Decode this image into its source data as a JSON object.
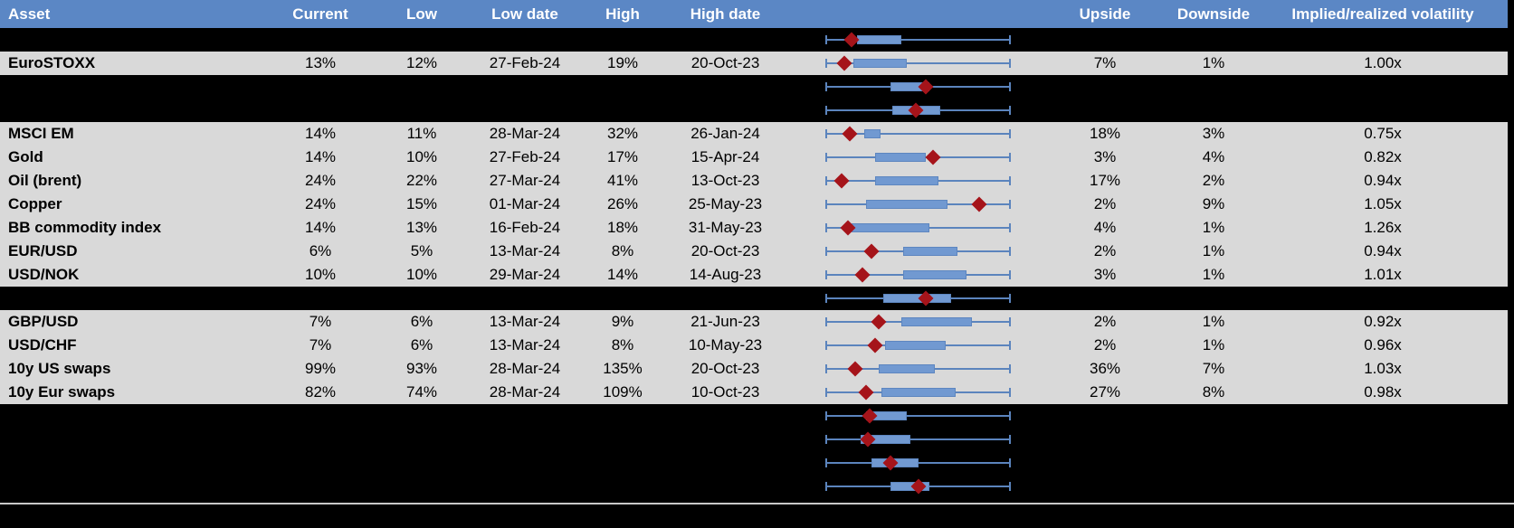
{
  "header": {
    "columns": [
      {
        "key": "asset",
        "label": "Asset"
      },
      {
        "key": "current",
        "label": "Current"
      },
      {
        "key": "low",
        "label": "Low"
      },
      {
        "key": "low_date",
        "label": "Low date"
      },
      {
        "key": "high",
        "label": "High"
      },
      {
        "key": "high_date",
        "label": "High date"
      },
      {
        "key": "chart",
        "label": ""
      },
      {
        "key": "upside",
        "label": "Upside"
      },
      {
        "key": "downside",
        "label": "Downside"
      },
      {
        "key": "implied",
        "label": "Implied/realized volatility"
      }
    ]
  },
  "rows": [
    {
      "type": "spacer"
    },
    {
      "type": "data",
      "asset": "EuroSTOXX",
      "current": "13%",
      "low": "12%",
      "low_date": "27-Feb-24",
      "high": "19%",
      "high_date": "20-Oct-23",
      "upside": "7%",
      "downside": "1%",
      "implied": "1.00x"
    },
    {
      "type": "spacer"
    },
    {
      "type": "spacer"
    },
    {
      "type": "data",
      "asset": "MSCI EM",
      "current": "14%",
      "low": "11%",
      "low_date": "28-Mar-24",
      "high": "32%",
      "high_date": "26-Jan-24",
      "upside": "18%",
      "downside": "3%",
      "implied": "0.75x"
    },
    {
      "type": "data",
      "asset": "Gold",
      "current": "14%",
      "low": "10%",
      "low_date": "27-Feb-24",
      "high": "17%",
      "high_date": "15-Apr-24",
      "upside": "3%",
      "downside": "4%",
      "implied": "0.82x"
    },
    {
      "type": "data",
      "asset": "Oil (brent)",
      "current": "24%",
      "low": "22%",
      "low_date": "27-Mar-24",
      "high": "41%",
      "high_date": "13-Oct-23",
      "upside": "17%",
      "downside": "2%",
      "implied": "0.94x"
    },
    {
      "type": "data",
      "asset": "Copper",
      "current": "24%",
      "low": "15%",
      "low_date": "01-Mar-24",
      "high": "26%",
      "high_date": "25-May-23",
      "upside": "2%",
      "downside": "9%",
      "implied": "1.05x"
    },
    {
      "type": "data",
      "asset": "BB commodity index",
      "current": "14%",
      "low": "13%",
      "low_date": "16-Feb-24",
      "high": "18%",
      "high_date": "31-May-23",
      "upside": "4%",
      "downside": "1%",
      "implied": "1.26x"
    },
    {
      "type": "data",
      "asset": "EUR/USD",
      "current": "6%",
      "low": "5%",
      "low_date": "13-Mar-24",
      "high": "8%",
      "high_date": "20-Oct-23",
      "upside": "2%",
      "downside": "1%",
      "implied": "0.94x"
    },
    {
      "type": "data",
      "asset": "USD/NOK",
      "current": "10%",
      "low": "10%",
      "low_date": "29-Mar-24",
      "high": "14%",
      "high_date": "14-Aug-23",
      "upside": "3%",
      "downside": "1%",
      "implied": "1.01x"
    },
    {
      "type": "spacer"
    },
    {
      "type": "data",
      "asset": "GBP/USD",
      "current": "7%",
      "low": "6%",
      "low_date": "13-Mar-24",
      "high": "9%",
      "high_date": "21-Jun-23",
      "upside": "2%",
      "downside": "1%",
      "implied": "0.92x"
    },
    {
      "type": "data",
      "asset": "USD/CHF",
      "current": "7%",
      "low": "6%",
      "low_date": "13-Mar-24",
      "high": "8%",
      "high_date": "10-May-23",
      "upside": "2%",
      "downside": "1%",
      "implied": "0.96x"
    },
    {
      "type": "data",
      "asset": "10y US swaps",
      "current": "99%",
      "low": "93%",
      "low_date": "28-Mar-24",
      "high": "135%",
      "high_date": "20-Oct-23",
      "upside": "36%",
      "downside": "7%",
      "implied": "1.03x"
    },
    {
      "type": "data",
      "asset": "10y Eur swaps",
      "current": "82%",
      "low": "74%",
      "low_date": "28-Mar-24",
      "high": "109%",
      "high_date": "10-Oct-23",
      "upside": "27%",
      "downside": "8%",
      "implied": "0.98x"
    },
    {
      "type": "spacer"
    },
    {
      "type": "spacer"
    },
    {
      "type": "spacer"
    },
    {
      "type": "spacer"
    }
  ],
  "chart_data": {
    "type": "boxplot",
    "orientation": "horizontal",
    "title": "",
    "x_range": [
      0,
      1
    ],
    "note": "One horizontal range bar per table row; whiskers span full axis [0,1]; box = interquartile-style blue bar; diamond = current level marker. Positions normalized 0-1 across plot width.",
    "rows": [
      {
        "label": "",
        "box": [
          0.17,
          0.41
        ],
        "marker": 0.14
      },
      {
        "label": "EuroSTOXX",
        "box": [
          0.15,
          0.44
        ],
        "marker": 0.1
      },
      {
        "label": "",
        "box": [
          0.35,
          0.56
        ],
        "marker": 0.54
      },
      {
        "label": "",
        "box": [
          0.36,
          0.62
        ],
        "marker": 0.49
      },
      {
        "label": "MSCI EM",
        "box": [
          0.21,
          0.3
        ],
        "marker": 0.13
      },
      {
        "label": "Gold",
        "box": [
          0.27,
          0.54
        ],
        "marker": 0.58
      },
      {
        "label": "Oil (brent)",
        "box": [
          0.27,
          0.61
        ],
        "marker": 0.09
      },
      {
        "label": "Copper",
        "box": [
          0.22,
          0.66
        ],
        "marker": 0.83
      },
      {
        "label": "BB commodity index",
        "box": [
          0.14,
          0.56
        ],
        "marker": 0.12
      },
      {
        "label": "EUR/USD",
        "box": [
          0.42,
          0.71
        ],
        "marker": 0.25
      },
      {
        "label": "USD/NOK",
        "box": [
          0.42,
          0.76
        ],
        "marker": 0.2
      },
      {
        "label": "",
        "box": [
          0.31,
          0.68
        ],
        "marker": 0.54
      },
      {
        "label": "GBP/USD",
        "box": [
          0.41,
          0.79
        ],
        "marker": 0.29
      },
      {
        "label": "USD/CHF",
        "box": [
          0.32,
          0.65
        ],
        "marker": 0.27
      },
      {
        "label": "10y US swaps",
        "box": [
          0.29,
          0.59
        ],
        "marker": 0.16
      },
      {
        "label": "10y Eur swaps",
        "box": [
          0.3,
          0.7
        ],
        "marker": 0.22
      },
      {
        "label": "",
        "box": [
          0.22,
          0.44
        ],
        "marker": 0.24
      },
      {
        "label": "",
        "box": [
          0.19,
          0.46
        ],
        "marker": 0.23
      },
      {
        "label": "",
        "box": [
          0.25,
          0.5
        ],
        "marker": 0.35
      },
      {
        "label": "",
        "box": [
          0.35,
          0.56
        ],
        "marker": 0.5
      }
    ]
  },
  "colors": {
    "header_bg": "#5b87c5",
    "header_text": "#ffffff",
    "row_bg": "#d9d9d9",
    "spacer_bg": "#000000",
    "text": "#000000",
    "whisker": "#5b84bd",
    "box_fill": "#7199d1",
    "box_border": "#5d86c0",
    "marker": "#a5141a",
    "separator": "#c9c9c9"
  }
}
